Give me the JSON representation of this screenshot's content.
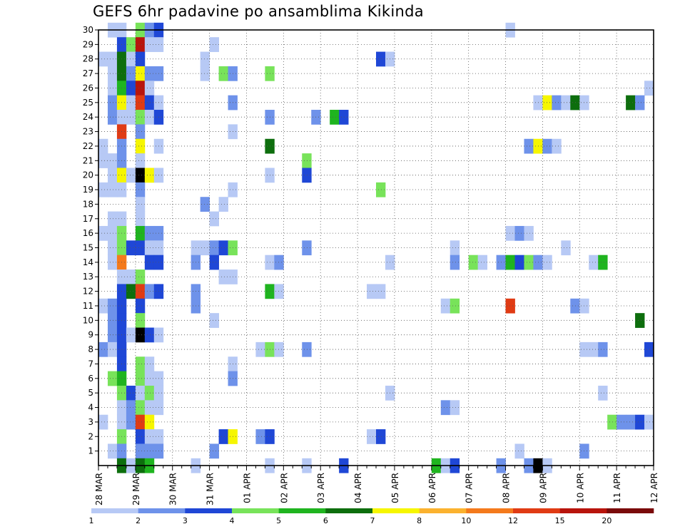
{
  "chart_data": {
    "type": "heatmap",
    "title": "GEFS 6hr padavine po ansamblima Kikinda",
    "x_tick_labels": [
      "28 MAR",
      "29 MAR",
      "30 MAR",
      "31 MAR",
      "01 APR",
      "02 APR",
      "03 APR",
      "04 APR",
      "05 APR",
      "06 APR",
      "07 APR",
      "08 APR",
      "09 APR",
      "10 APR",
      "11 APR",
      "12 APR"
    ],
    "y_tick_labels": [
      "1",
      "2",
      "3",
      "4",
      "5",
      "6",
      "7",
      "8",
      "9",
      "10",
      "11",
      "12",
      "13",
      "14",
      "15",
      "16",
      "17",
      "18",
      "19",
      "20",
      "21",
      "22",
      "23",
      "24",
      "25",
      "26",
      "27",
      "28",
      "29",
      "30"
    ],
    "x_range_steps": [
      0,
      60
    ],
    "steps_per_day": 4,
    "y_range": [
      0,
      30
    ],
    "grid": true,
    "colorbar": {
      "tick_labels": [
        "1",
        "2",
        "3",
        "4",
        "5",
        "6",
        "7",
        "8",
        "10",
        "12",
        "15",
        "20"
      ],
      "colors": [
        "#b7c9f5",
        "#6e92ea",
        "#1f47d6",
        "#78e35a",
        "#1fb41f",
        "#0d6e0d",
        "#f6f600",
        "#fbb22f",
        "#f47a1c",
        "#e03b14",
        "#b8140c",
        "#7a0a0a"
      ],
      "placement": "bottom"
    },
    "cells": [
      [
        30,
        1,
        1
      ],
      [
        30,
        2,
        1
      ],
      [
        30,
        4,
        4
      ],
      [
        30,
        5,
        2
      ],
      [
        30,
        6,
        3
      ],
      [
        30,
        44,
        1
      ],
      [
        29,
        2,
        3
      ],
      [
        29,
        3,
        4
      ],
      [
        29,
        4,
        11
      ],
      [
        29,
        5,
        1
      ],
      [
        29,
        6,
        1
      ],
      [
        29,
        12,
        1
      ],
      [
        28,
        0,
        1
      ],
      [
        28,
        1,
        1
      ],
      [
        28,
        2,
        6
      ],
      [
        28,
        3,
        1
      ],
      [
        28,
        4,
        3
      ],
      [
        28,
        11,
        1
      ],
      [
        28,
        30,
        3
      ],
      [
        28,
        31,
        1
      ],
      [
        27,
        1,
        1
      ],
      [
        27,
        2,
        6
      ],
      [
        27,
        3,
        2
      ],
      [
        27,
        4,
        7
      ],
      [
        27,
        5,
        2
      ],
      [
        27,
        6,
        2
      ],
      [
        27,
        11,
        1
      ],
      [
        27,
        13,
        4
      ],
      [
        27,
        14,
        2
      ],
      [
        27,
        18,
        4
      ],
      [
        26,
        1,
        1
      ],
      [
        26,
        2,
        5
      ],
      [
        26,
        3,
        3
      ],
      [
        26,
        4,
        11
      ],
      [
        26,
        5,
        1
      ],
      [
        26,
        59,
        1
      ],
      [
        25,
        1,
        2
      ],
      [
        25,
        2,
        7
      ],
      [
        25,
        3,
        1
      ],
      [
        25,
        4,
        10
      ],
      [
        25,
        5,
        3
      ],
      [
        25,
        6,
        1
      ],
      [
        25,
        14,
        2
      ],
      [
        25,
        47,
        1
      ],
      [
        25,
        48,
        7
      ],
      [
        25,
        49,
        2
      ],
      [
        25,
        50,
        1
      ],
      [
        25,
        51,
        6
      ],
      [
        25,
        52,
        1
      ],
      [
        25,
        57,
        6
      ],
      [
        25,
        58,
        2
      ],
      [
        24,
        1,
        2
      ],
      [
        24,
        2,
        1
      ],
      [
        24,
        3,
        1
      ],
      [
        24,
        4,
        4
      ],
      [
        24,
        5,
        1
      ],
      [
        24,
        6,
        3
      ],
      [
        24,
        18,
        2
      ],
      [
        24,
        23,
        2
      ],
      [
        24,
        25,
        5
      ],
      [
        24,
        26,
        3
      ],
      [
        23,
        2,
        10
      ],
      [
        23,
        4,
        2
      ],
      [
        23,
        14,
        1
      ],
      [
        22,
        0,
        1
      ],
      [
        22,
        2,
        2
      ],
      [
        22,
        4,
        7
      ],
      [
        22,
        6,
        1
      ],
      [
        22,
        18,
        6
      ],
      [
        22,
        46,
        2
      ],
      [
        22,
        47,
        7
      ],
      [
        22,
        48,
        2
      ],
      [
        22,
        49,
        1
      ],
      [
        21,
        0,
        1
      ],
      [
        21,
        1,
        1
      ],
      [
        21,
        2,
        2
      ],
      [
        21,
        4,
        1
      ],
      [
        21,
        22,
        4
      ],
      [
        20,
        1,
        1
      ],
      [
        20,
        2,
        7
      ],
      [
        20,
        3,
        1
      ],
      [
        20,
        4,
        14
      ],
      [
        20,
        5,
        7
      ],
      [
        20,
        6,
        1
      ],
      [
        20,
        18,
        1
      ],
      [
        20,
        22,
        3
      ],
      [
        19,
        0,
        1
      ],
      [
        19,
        1,
        1
      ],
      [
        19,
        2,
        1
      ],
      [
        19,
        4,
        2
      ],
      [
        19,
        14,
        1
      ],
      [
        19,
        30,
        4
      ],
      [
        18,
        4,
        1
      ],
      [
        18,
        11,
        2
      ],
      [
        18,
        13,
        1
      ],
      [
        17,
        1,
        1
      ],
      [
        17,
        2,
        1
      ],
      [
        17,
        4,
        1
      ],
      [
        17,
        12,
        1
      ],
      [
        16,
        0,
        1
      ],
      [
        16,
        1,
        1
      ],
      [
        16,
        2,
        4
      ],
      [
        16,
        4,
        5
      ],
      [
        16,
        5,
        2
      ],
      [
        16,
        6,
        2
      ],
      [
        16,
        44,
        1
      ],
      [
        16,
        45,
        2
      ],
      [
        16,
        46,
        1
      ],
      [
        15,
        1,
        1
      ],
      [
        15,
        2,
        4
      ],
      [
        15,
        3,
        3
      ],
      [
        15,
        4,
        3
      ],
      [
        15,
        5,
        1
      ],
      [
        15,
        6,
        1
      ],
      [
        15,
        10,
        1
      ],
      [
        15,
        11,
        1
      ],
      [
        15,
        12,
        2
      ],
      [
        15,
        13,
        3
      ],
      [
        15,
        14,
        4
      ],
      [
        15,
        22,
        2
      ],
      [
        15,
        38,
        1
      ],
      [
        15,
        50,
        1
      ],
      [
        14,
        1,
        1
      ],
      [
        14,
        2,
        9
      ],
      [
        14,
        5,
        3
      ],
      [
        14,
        6,
        3
      ],
      [
        14,
        10,
        2
      ],
      [
        14,
        12,
        3
      ],
      [
        14,
        18,
        1
      ],
      [
        14,
        19,
        2
      ],
      [
        14,
        31,
        1
      ],
      [
        14,
        38,
        2
      ],
      [
        14,
        40,
        4
      ],
      [
        14,
        41,
        1
      ],
      [
        14,
        43,
        2
      ],
      [
        14,
        44,
        5
      ],
      [
        14,
        45,
        3
      ],
      [
        14,
        46,
        4
      ],
      [
        14,
        47,
        2
      ],
      [
        14,
        48,
        1
      ],
      [
        14,
        53,
        1
      ],
      [
        14,
        54,
        5
      ],
      [
        13,
        2,
        1
      ],
      [
        13,
        3,
        1
      ],
      [
        13,
        4,
        4
      ],
      [
        13,
        13,
        1
      ],
      [
        13,
        14,
        1
      ],
      [
        12,
        2,
        3
      ],
      [
        12,
        3,
        6
      ],
      [
        12,
        4,
        10
      ],
      [
        12,
        5,
        2
      ],
      [
        12,
        6,
        3
      ],
      [
        12,
        10,
        2
      ],
      [
        12,
        18,
        5
      ],
      [
        12,
        19,
        1
      ],
      [
        12,
        29,
        1
      ],
      [
        12,
        30,
        1
      ],
      [
        11,
        0,
        1
      ],
      [
        11,
        1,
        2
      ],
      [
        11,
        2,
        3
      ],
      [
        11,
        4,
        3
      ],
      [
        11,
        10,
        2
      ],
      [
        11,
        37,
        1
      ],
      [
        11,
        38,
        4
      ],
      [
        11,
        44,
        10
      ],
      [
        11,
        51,
        2
      ],
      [
        11,
        52,
        1
      ],
      [
        10,
        1,
        2
      ],
      [
        10,
        2,
        3
      ],
      [
        10,
        4,
        4
      ],
      [
        10,
        12,
        1
      ],
      [
        10,
        58,
        6
      ],
      [
        9,
        1,
        2
      ],
      [
        9,
        2,
        3
      ],
      [
        9,
        3,
        1
      ],
      [
        9,
        4,
        14
      ],
      [
        9,
        5,
        3
      ],
      [
        9,
        6,
        1
      ],
      [
        8,
        0,
        2
      ],
      [
        8,
        1,
        1
      ],
      [
        8,
        2,
        3
      ],
      [
        8,
        17,
        1
      ],
      [
        8,
        18,
        4
      ],
      [
        8,
        19,
        1
      ],
      [
        8,
        22,
        2
      ],
      [
        8,
        52,
        1
      ],
      [
        8,
        53,
        1
      ],
      [
        8,
        54,
        2
      ],
      [
        8,
        59,
        3
      ],
      [
        7,
        2,
        3
      ],
      [
        7,
        4,
        4
      ],
      [
        7,
        5,
        1
      ],
      [
        7,
        14,
        1
      ],
      [
        6,
        1,
        4
      ],
      [
        6,
        2,
        5
      ],
      [
        6,
        4,
        4
      ],
      [
        6,
        5,
        1
      ],
      [
        6,
        6,
        1
      ],
      [
        6,
        14,
        2
      ],
      [
        5,
        2,
        4
      ],
      [
        5,
        3,
        3
      ],
      [
        5,
        4,
        1
      ],
      [
        5,
        5,
        4
      ],
      [
        5,
        6,
        1
      ],
      [
        5,
        31,
        1
      ],
      [
        5,
        54,
        1
      ],
      [
        4,
        2,
        1
      ],
      [
        4,
        3,
        2
      ],
      [
        4,
        4,
        4
      ],
      [
        4,
        5,
        1
      ],
      [
        4,
        6,
        1
      ],
      [
        4,
        37,
        2
      ],
      [
        4,
        38,
        1
      ],
      [
        3,
        0,
        1
      ],
      [
        3,
        2,
        1
      ],
      [
        3,
        3,
        2
      ],
      [
        3,
        4,
        10
      ],
      [
        3,
        5,
        7
      ],
      [
        3,
        55,
        4
      ],
      [
        3,
        56,
        2
      ],
      [
        3,
        57,
        2
      ],
      [
        3,
        58,
        3
      ],
      [
        3,
        59,
        1
      ],
      [
        2,
        2,
        4
      ],
      [
        2,
        4,
        3
      ],
      [
        2,
        5,
        1
      ],
      [
        2,
        6,
        1
      ],
      [
        2,
        13,
        3
      ],
      [
        2,
        14,
        7
      ],
      [
        2,
        17,
        2
      ],
      [
        2,
        18,
        3
      ],
      [
        2,
        29,
        1
      ],
      [
        2,
        30,
        3
      ],
      [
        1,
        1,
        1
      ],
      [
        1,
        2,
        2
      ],
      [
        1,
        4,
        2
      ],
      [
        1,
        5,
        2
      ],
      [
        1,
        6,
        2
      ],
      [
        1,
        12,
        2
      ],
      [
        1,
        45,
        1
      ],
      [
        1,
        52,
        2
      ],
      [
        0,
        2,
        6
      ],
      [
        0,
        3,
        1
      ],
      [
        0,
        4,
        6
      ],
      [
        0,
        5,
        5
      ],
      [
        0,
        10,
        1
      ],
      [
        0,
        18,
        1
      ],
      [
        0,
        22,
        1
      ],
      [
        0,
        26,
        3
      ],
      [
        0,
        36,
        5
      ],
      [
        0,
        37,
        1
      ],
      [
        0,
        38,
        3
      ],
      [
        0,
        43,
        2
      ],
      [
        0,
        46,
        2
      ],
      [
        0,
        47,
        13
      ],
      [
        0,
        48,
        1
      ]
    ]
  }
}
